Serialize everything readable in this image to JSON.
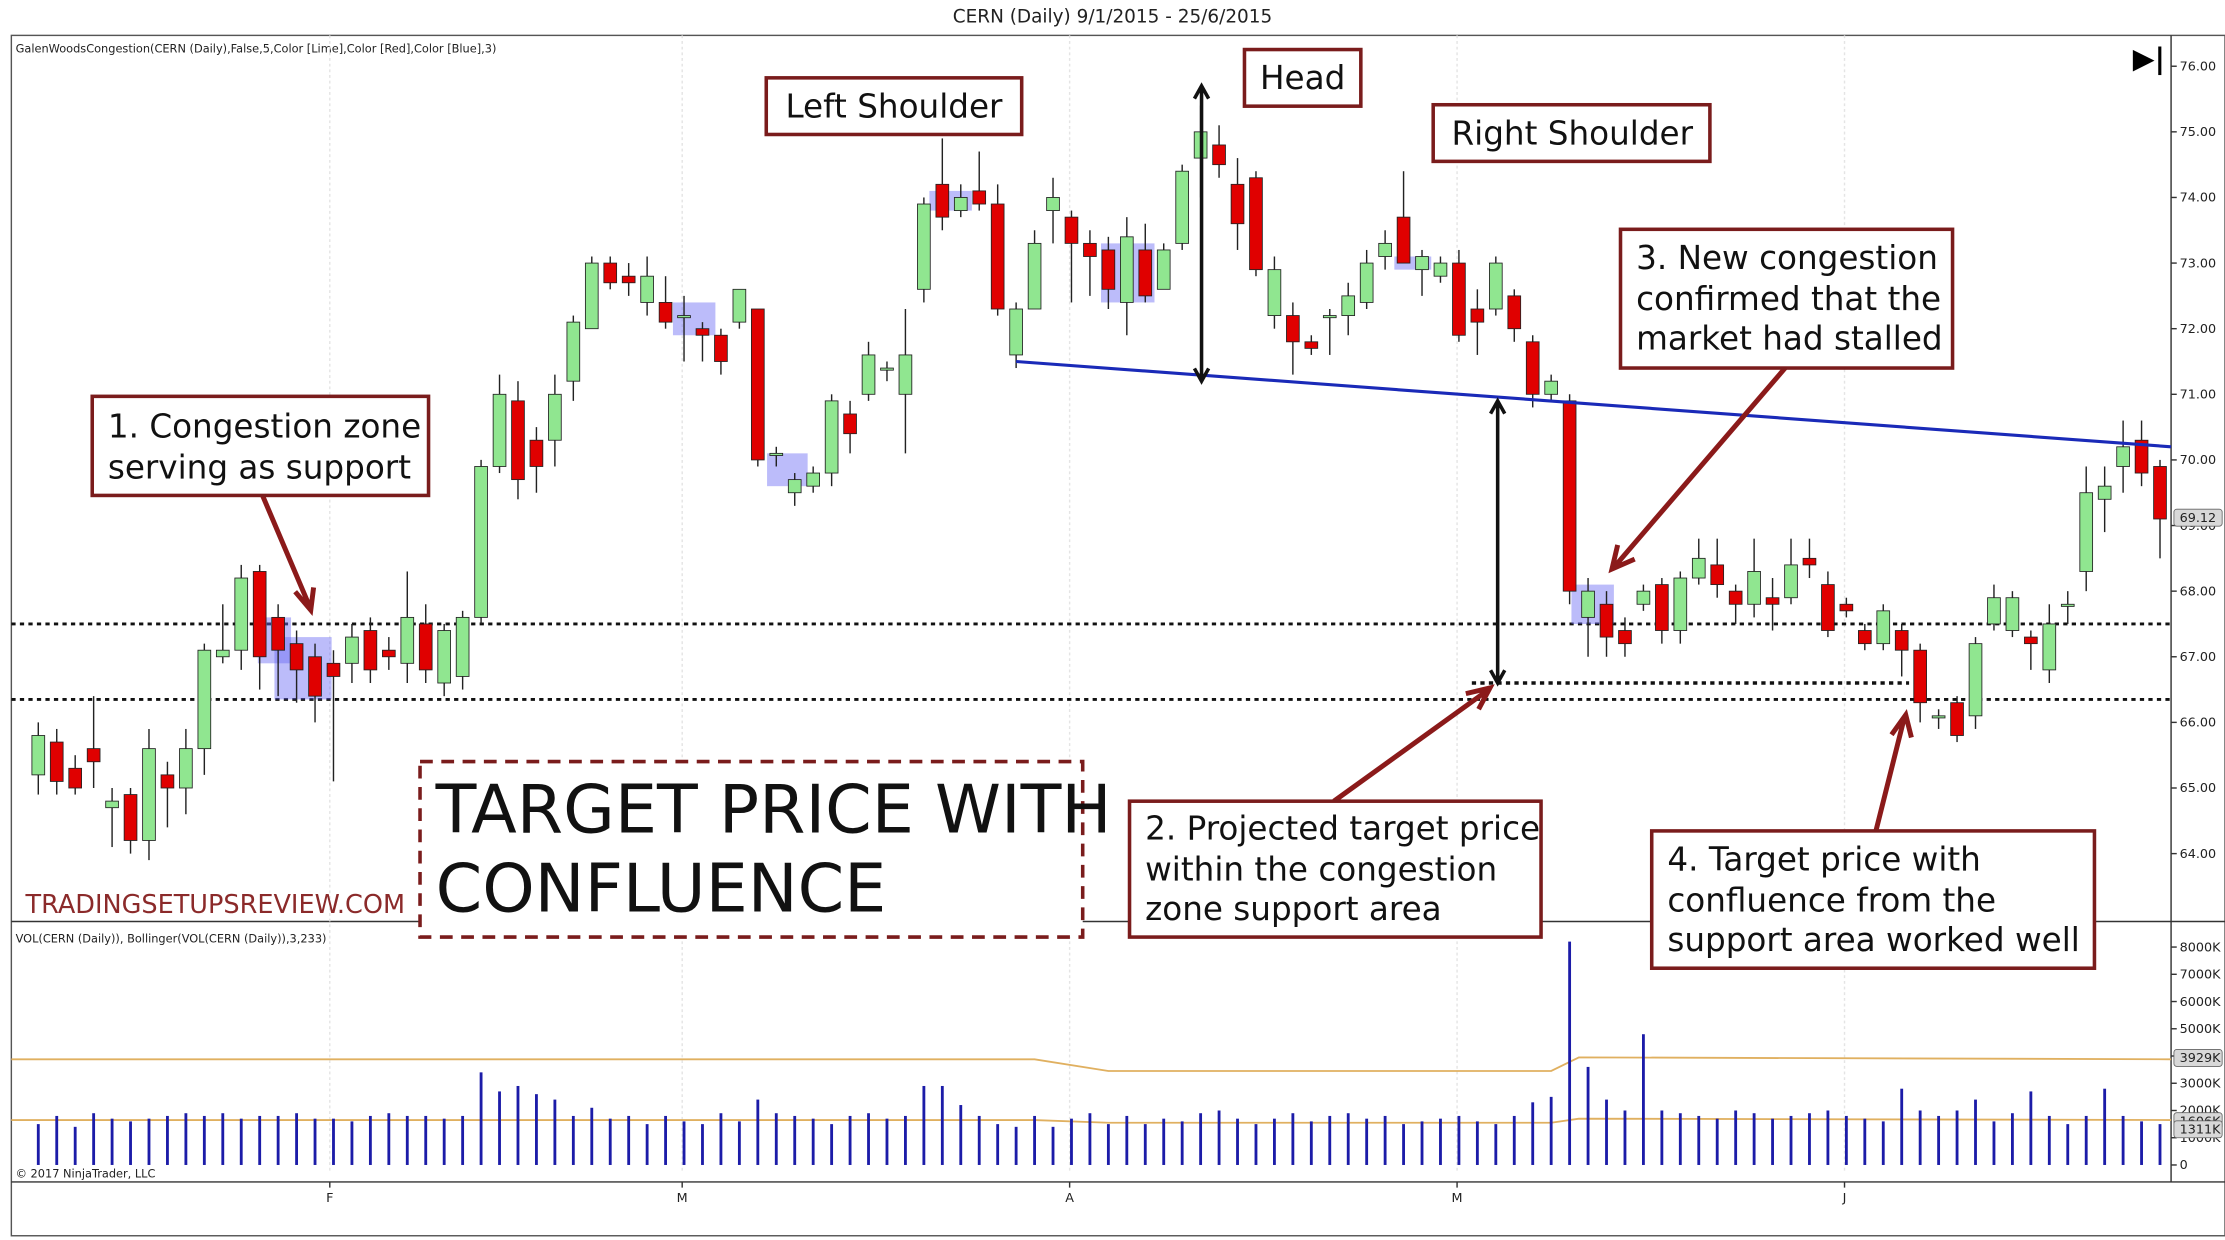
{
  "chart_data": {
    "type": "candlestick",
    "title": "CERN (Daily)  9/1/2015 - 25/6/2015",
    "indicator_label": "GalenWoodsCongestion(CERN (Daily),False,5,Color [Lime],Color [Red],Color [Blue],3)",
    "volume_label": "VOL(CERN (Daily)), Bollinger(VOL(CERN (Daily)),3,233)",
    "copyright": "© 2017 NinjaTrader, LLC",
    "watermark": "TRADINGSETUPSREVIEW.COM",
    "up_color": "#90e690",
    "down_color": "#e00000",
    "volume_color": "#1c1ca8",
    "band_color": "#e0b060",
    "zone_color": "#6a6af5",
    "neckline_color": "#1a2ab8",
    "xlim": [
      -1.46,
      115.6
    ],
    "xticks": [
      {
        "value": 15.8,
        "label": "F"
      },
      {
        "value": 34.9,
        "label": "M"
      },
      {
        "value": 55.9,
        "label": "A"
      },
      {
        "value": 76.9,
        "label": "M"
      },
      {
        "value": 97.9,
        "label": "J"
      }
    ],
    "ylim": [
      63.03,
      76.47
    ],
    "yticks": [
      {
        "value": 64,
        "label": "64.00"
      },
      {
        "value": 65,
        "label": "65.00"
      },
      {
        "value": 66,
        "label": "66.00"
      },
      {
        "value": 67,
        "label": "67.00"
      },
      {
        "value": 68,
        "label": "68.00"
      },
      {
        "value": 69,
        "label": "69.00"
      },
      {
        "value": 70,
        "label": "70.00"
      },
      {
        "value": 71,
        "label": "71.00"
      },
      {
        "value": 72,
        "label": "72.00"
      },
      {
        "value": 73,
        "label": "73.00"
      },
      {
        "value": 74,
        "label": "74.00"
      },
      {
        "value": 75,
        "label": "75.00"
      },
      {
        "value": 76,
        "label": "76.00"
      }
    ],
    "last_price": 69.12,
    "open": [
      65.2,
      65.7,
      65.3,
      65.6,
      64.7,
      64.9,
      64.2,
      65.2,
      65.0,
      65.6,
      67.0,
      67.1,
      68.3,
      67.6,
      67.2,
      67.0,
      66.9,
      66.9,
      67.4,
      67.1,
      66.9,
      67.5,
      66.6,
      66.7,
      67.6,
      69.9,
      70.9,
      70.3,
      70.3,
      71.2,
      72.0,
      73.0,
      72.8,
      72.4,
      72.4,
      72.2,
      72.0,
      71.9,
      72.1,
      72.3,
      70.1,
      69.5,
      69.6,
      69.8,
      70.7,
      71.0,
      71.4,
      71.0,
      72.6,
      74.2,
      73.8,
      74.1,
      73.9,
      71.6,
      72.3,
      73.8,
      73.7,
      73.3,
      73.2,
      72.4,
      73.2,
      72.6,
      73.3,
      74.6,
      74.8,
      74.2,
      74.3,
      72.2,
      72.2,
      71.8,
      72.2,
      72.2,
      72.4,
      73.1,
      73.7,
      72.9,
      72.8,
      73.0,
      72.3,
      72.3,
      72.5,
      71.8,
      71.0,
      70.9,
      67.6,
      67.8,
      67.4,
      67.8,
      68.1,
      67.4,
      68.2,
      68.4,
      68.0,
      67.8,
      67.9,
      67.9,
      68.5,
      68.1,
      67.8,
      67.4,
      67.2,
      67.4,
      67.1,
      66.1,
      66.3,
      66.1,
      67.5,
      67.4,
      67.3,
      66.8,
      67.8,
      68.3,
      69.4,
      69.9,
      70.3,
      69.9
    ],
    "high": [
      66.0,
      65.9,
      65.5,
      66.4,
      65.0,
      65.0,
      65.9,
      65.4,
      65.9,
      67.2,
      67.8,
      68.4,
      68.4,
      67.8,
      67.4,
      67.2,
      67.1,
      67.5,
      67.6,
      67.3,
      68.3,
      67.8,
      67.5,
      67.7,
      70.0,
      71.3,
      71.2,
      70.5,
      71.3,
      72.2,
      73.1,
      73.1,
      73.0,
      73.1,
      72.8,
      72.5,
      72.1,
      72.0,
      72.6,
      72.3,
      70.2,
      69.8,
      69.9,
      71.0,
      70.9,
      71.8,
      71.5,
      72.3,
      74.0,
      74.9,
      74.2,
      74.7,
      74.2,
      72.4,
      73.5,
      74.3,
      73.8,
      73.5,
      73.4,
      73.7,
      73.6,
      73.3,
      74.5,
      75.4,
      75.1,
      74.6,
      74.4,
      73.1,
      72.4,
      71.9,
      72.3,
      72.7,
      73.2,
      73.5,
      74.4,
      73.2,
      73.1,
      73.2,
      72.6,
      73.1,
      72.6,
      71.9,
      71.3,
      71.0,
      68.2,
      68.0,
      67.6,
      68.1,
      68.2,
      68.3,
      68.8,
      68.8,
      68.1,
      68.8,
      68.2,
      68.8,
      68.8,
      68.3,
      67.9,
      67.5,
      67.8,
      67.5,
      67.2,
      66.2,
      66.4,
      67.3,
      68.1,
      68.0,
      67.4,
      67.8,
      68.0,
      69.9,
      69.9,
      70.6,
      70.6,
      70.0
    ],
    "low": [
      64.9,
      64.9,
      64.9,
      65.0,
      64.1,
      64.0,
      63.9,
      64.4,
      64.6,
      65.2,
      66.9,
      66.8,
      66.5,
      66.4,
      66.3,
      66.0,
      65.1,
      66.6,
      66.6,
      66.8,
      66.6,
      66.6,
      66.4,
      66.5,
      67.5,
      69.8,
      69.4,
      69.5,
      69.9,
      70.9,
      72.0,
      72.6,
      72.5,
      72.2,
      72.0,
      71.5,
      71.5,
      71.3,
      72.0,
      69.9,
      69.9,
      69.3,
      69.5,
      69.6,
      70.1,
      70.9,
      71.2,
      70.1,
      72.4,
      73.5,
      73.7,
      73.8,
      72.2,
      71.4,
      72.3,
      73.3,
      72.4,
      72.5,
      72.3,
      71.9,
      72.4,
      72.6,
      73.2,
      74.0,
      74.3,
      73.2,
      72.8,
      72.0,
      71.3,
      71.6,
      71.6,
      71.9,
      72.3,
      72.9,
      73.0,
      72.5,
      72.7,
      71.8,
      71.6,
      72.2,
      71.8,
      70.8,
      70.9,
      67.8,
      67.0,
      67.0,
      67.0,
      67.7,
      67.2,
      67.2,
      68.1,
      67.9,
      67.5,
      67.6,
      67.4,
      67.8,
      68.2,
      67.3,
      67.6,
      67.1,
      67.1,
      66.7,
      66.0,
      65.9,
      65.7,
      65.9,
      67.4,
      67.3,
      66.8,
      66.6,
      67.5,
      68.0,
      68.9,
      69.5,
      69.6,
      68.5
    ],
    "close": [
      65.8,
      65.1,
      65.0,
      65.4,
      64.8,
      64.2,
      65.6,
      65.0,
      65.6,
      67.1,
      67.1,
      68.2,
      67.0,
      67.1,
      66.8,
      66.4,
      66.7,
      67.3,
      66.8,
      67.0,
      67.6,
      66.8,
      67.4,
      67.6,
      69.9,
      71.0,
      69.7,
      69.9,
      71.0,
      72.1,
      73.0,
      72.7,
      72.7,
      72.8,
      72.1,
      72.2,
      71.9,
      71.5,
      72.6,
      70.0,
      70.1,
      69.7,
      69.8,
      70.9,
      70.4,
      71.6,
      71.4,
      71.6,
      73.9,
      73.7,
      74.0,
      73.9,
      72.3,
      72.3,
      73.3,
      74.0,
      73.3,
      73.1,
      72.6,
      73.4,
      72.5,
      73.2,
      74.4,
      75.0,
      74.5,
      73.6,
      72.9,
      72.9,
      71.8,
      71.7,
      72.2,
      72.5,
      73.0,
      73.3,
      73.0,
      73.1,
      73.0,
      71.9,
      72.1,
      73.0,
      72.0,
      71.0,
      71.2,
      68.0,
      68.0,
      67.3,
      67.2,
      68.0,
      67.4,
      68.2,
      68.5,
      68.1,
      67.8,
      68.3,
      67.8,
      68.4,
      68.4,
      67.4,
      67.7,
      67.2,
      67.7,
      67.1,
      66.3,
      66.1,
      65.8,
      67.2,
      67.9,
      67.9,
      67.2,
      67.5,
      67.8,
      69.5,
      69.6,
      70.2,
      69.8,
      69.1
    ],
    "volume": [
      1500000,
      1800000,
      1400000,
      1900000,
      1700000,
      1600000,
      1700000,
      1800000,
      1900000,
      1800000,
      1900000,
      1700000,
      1800000,
      1800000,
      1900000,
      1700000,
      1700000,
      1600000,
      1800000,
      1900000,
      1800000,
      1800000,
      1700000,
      1800000,
      3400000,
      2700000,
      2900000,
      2600000,
      2400000,
      1800000,
      2100000,
      1700000,
      1800000,
      1500000,
      1800000,
      1600000,
      1500000,
      1900000,
      1600000,
      2400000,
      1900000,
      1800000,
      1700000,
      1500000,
      1800000,
      1900000,
      1700000,
      1800000,
      2900000,
      2900000,
      2200000,
      1800000,
      1500000,
      1400000,
      1800000,
      1400000,
      1700000,
      1900000,
      1500000,
      1800000,
      1500000,
      1700000,
      1600000,
      1900000,
      2000000,
      1700000,
      1500000,
      1700000,
      1900000,
      1600000,
      1800000,
      1900000,
      1700000,
      1800000,
      1500000,
      1600000,
      1700000,
      1800000,
      1600000,
      1500000,
      1800000,
      2300000,
      2500000,
      8200000,
      3600000,
      2400000,
      2000000,
      4800000,
      2000000,
      1900000,
      1800000,
      1700000,
      2000000,
      1900000,
      1700000,
      1800000,
      1900000,
      2000000,
      1800000,
      1700000,
      1600000,
      2800000,
      2000000,
      1800000,
      2000000,
      2400000,
      1600000,
      1900000,
      2700000,
      1800000,
      1500000,
      1800000,
      2800000,
      1800000,
      1600000,
      1500000
    ],
    "vlim": [
      -260000,
      8730000
    ],
    "vticks": [
      {
        "value": 0,
        "label": "0"
      },
      {
        "value": 1000000,
        "label": "1000K"
      },
      {
        "value": 2000000,
        "label": "2000K"
      },
      {
        "value": 3000000,
        "label": "3000K"
      },
      {
        "value": 4000000,
        "label": "4000K"
      },
      {
        "value": 5000000,
        "label": "5000K"
      },
      {
        "value": 6000000,
        "label": "6000K"
      },
      {
        "value": 7000000,
        "label": "7000K"
      },
      {
        "value": 8000000,
        "label": "8000K"
      }
    ],
    "volume_badges": [
      {
        "value": 3929000,
        "label": "3929K"
      },
      {
        "value": 1606000,
        "label": "1606K"
      },
      {
        "value": 1311000,
        "label": "1311K"
      }
    ],
    "upper_band": {
      "x": [
        -1.46,
        54,
        58,
        82,
        83.5,
        115.6
      ],
      "values": [
        3880000,
        3880000,
        3450000,
        3450000,
        3950000,
        3880000
      ]
    },
    "lower_band": {
      "x": [
        -1.46,
        54,
        58,
        82,
        83.5,
        115.6
      ],
      "values": [
        1650000,
        1650000,
        1550000,
        1550000,
        1700000,
        1650000
      ]
    },
    "support_levels": [
      67.5,
      66.35
    ],
    "target_line": {
      "x": [
        77.7,
        101.4
      ],
      "value": 66.6
    },
    "neckline": {
      "x": [
        53,
        115.6
      ],
      "values": [
        71.5,
        70.2
      ]
    },
    "measure_arrows": [
      {
        "x": 63.05,
        "values": [
          75.7,
          71.2
        ]
      },
      {
        "x": 79.1,
        "values": [
          70.9,
          66.6
        ]
      }
    ],
    "congestion_zones": [
      {
        "x": [
          11.9,
          13.7
        ],
        "values": [
          67.6,
          66.9
        ]
      },
      {
        "x": [
          12.8,
          15.9
        ],
        "values": [
          67.3,
          66.35
        ]
      },
      {
        "x": [
          34.4,
          36.7
        ],
        "values": [
          72.4,
          71.9
        ]
      },
      {
        "x": [
          39.5,
          41.7
        ],
        "values": [
          70.1,
          69.6
        ]
      },
      {
        "x": [
          48.3,
          50.6
        ],
        "values": [
          74.1,
          73.8
        ]
      },
      {
        "x": [
          57.6,
          60.5
        ],
        "values": [
          73.3,
          72.4
        ]
      },
      {
        "x": [
          73.5,
          75.5
        ],
        "values": [
          73.1,
          72.9
        ]
      },
      {
        "x": [
          83.1,
          85.4
        ],
        "values": [
          68.1,
          67.5
        ]
      }
    ],
    "annotations": {
      "left_shoulder": "Left Shoulder",
      "head": "Head",
      "right_shoulder": "Right Shoulder",
      "note1": [
        "1. Congestion zone",
        "serving as support"
      ],
      "note2": [
        "2. Projected target price",
        "within the congestion",
        "zone support area"
      ],
      "note3": [
        "3. New congestion",
        "confirmed that the",
        "market had stalled"
      ],
      "note4": [
        "4. Target price with",
        "confluence from the",
        "support area worked well"
      ],
      "headline": [
        "TARGET PRICE WITH",
        "CONFLUENCE"
      ]
    }
  }
}
